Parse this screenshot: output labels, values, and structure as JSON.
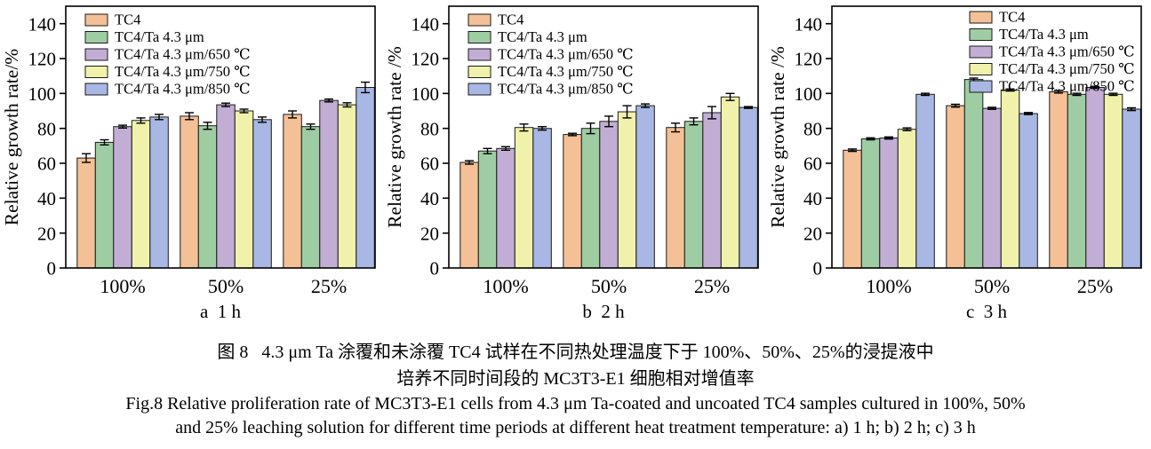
{
  "figure": {
    "caption_zh_line1": "图 8   4.3 μm Ta 涂覆和未涂覆 TC4 试样在不同热处理温度下于 100%、50%、25%的浸提液中",
    "caption_zh_line2": "培养不同时间段的 MC3T3-E1 细胞相对增值率",
    "caption_en_line1": "Fig.8 Relative proliferation rate of MC3T3-E1 cells from 4.3 μm Ta-coated and uncoated TC4 samples cultured in 100%, 50%",
    "caption_en_line2": "and 25% leaching solution for different time periods at different heat treatment temperature: a) 1 h; b) 2 h; c) 3 h"
  },
  "colors": {
    "axis": "#000000",
    "bar_stroke": "#1a1a1a",
    "error_bar": "#000000",
    "series": [
      "#F4C096",
      "#9FCDA3",
      "#C2AED5",
      "#F0F2AC",
      "#A8B7E3"
    ]
  },
  "chart_data": [
    {
      "type": "bar",
      "title": "a  1 h",
      "ylabel": "Relative growth rate/%",
      "xlabel": "",
      "categories": [
        "100%",
        "50%",
        "25%"
      ],
      "ylim": [
        0,
        150
      ],
      "yticks": [
        0,
        20,
        40,
        60,
        80,
        100,
        120,
        140
      ],
      "grid": false,
      "legend_position": "top-left",
      "series": [
        {
          "name": "TC4",
          "color": "#F4C096",
          "values": [
            63,
            87,
            88
          ],
          "errors": [
            2.5,
            2,
            2
          ]
        },
        {
          "name": "TC4/Ta 4.3 μm",
          "color": "#9FCDA3",
          "values": [
            72,
            81.5,
            81
          ],
          "errors": [
            1.5,
            2,
            1.5
          ]
        },
        {
          "name": "TC4/Ta 4.3 μm/650 ℃",
          "color": "#C2AED5",
          "values": [
            81,
            93.5,
            96
          ],
          "errors": [
            0.8,
            1,
            0.8
          ]
        },
        {
          "name": "TC4/Ta 4.3 μm/750 ℃",
          "color": "#F0F2AC",
          "values": [
            84.5,
            90,
            93.5
          ],
          "errors": [
            1.5,
            1,
            1.2
          ]
        },
        {
          "name": "TC4/Ta 4.3 μm/850 ℃",
          "color": "#A8B7E3",
          "values": [
            86.5,
            85,
            103.5
          ],
          "errors": [
            1.5,
            1.5,
            3
          ]
        }
      ]
    },
    {
      "type": "bar",
      "title": "b  2 h",
      "ylabel": "Relative growth rate /%",
      "xlabel": "",
      "categories": [
        "100%",
        "50%",
        "25%"
      ],
      "ylim": [
        0,
        150
      ],
      "yticks": [
        0,
        20,
        40,
        60,
        80,
        100,
        120,
        140
      ],
      "grid": false,
      "legend_position": "top-left",
      "series": [
        {
          "name": "TC4",
          "color": "#F4C096",
          "values": [
            60.5,
            76.5,
            80.5
          ],
          "errors": [
            1,
            0.7,
            2.5
          ]
        },
        {
          "name": "TC4/Ta 4.3 μm",
          "color": "#9FCDA3",
          "values": [
            67,
            80,
            84
          ],
          "errors": [
            1.5,
            3,
            2
          ]
        },
        {
          "name": "TC4/Ta 4.3 μm/650 ℃",
          "color": "#C2AED5",
          "values": [
            68.5,
            84,
            89
          ],
          "errors": [
            1,
            3,
            3.5
          ]
        },
        {
          "name": "TC4/Ta 4.3 μm/750 ℃",
          "color": "#F0F2AC",
          "values": [
            80.5,
            89.5,
            98
          ],
          "errors": [
            2,
            3.5,
            2
          ]
        },
        {
          "name": "TC4/Ta 4.3 μm/850 ℃",
          "color": "#A8B7E3",
          "values": [
            80,
            93,
            92
          ],
          "errors": [
            1,
            1,
            0.5
          ]
        }
      ]
    },
    {
      "type": "bar",
      "title": "c  3 h",
      "ylabel": "Relative growth rate /%",
      "xlabel": "",
      "categories": [
        "100%",
        "50%",
        "25%"
      ],
      "ylim": [
        0,
        150
      ],
      "yticks": [
        0,
        20,
        40,
        60,
        80,
        100,
        120,
        140
      ],
      "grid": false,
      "legend_position": "top-right",
      "series": [
        {
          "name": "TC4",
          "color": "#F4C096",
          "values": [
            67.5,
            93,
            101
          ],
          "errors": [
            0.7,
            0.8,
            0.8
          ]
        },
        {
          "name": "TC4/Ta 4.3 μm",
          "color": "#9FCDA3",
          "values": [
            74,
            108,
            99.5
          ],
          "errors": [
            0.6,
            0.8,
            0.6
          ]
        },
        {
          "name": "TC4/Ta 4.3 μm/650 ℃",
          "color": "#C2AED5",
          "values": [
            74.5,
            91.5,
            103.5
          ],
          "errors": [
            0.6,
            0.6,
            0.6
          ]
        },
        {
          "name": "TC4/Ta 4.3 μm/750 ℃",
          "color": "#F0F2AC",
          "values": [
            79.5,
            102,
            99.5
          ],
          "errors": [
            0.8,
            0.6,
            0.6
          ]
        },
        {
          "name": "TC4/Ta 4.3 μm/850 ℃",
          "color": "#A8B7E3",
          "values": [
            99.5,
            88.5,
            91
          ],
          "errors": [
            0.6,
            0.6,
            0.8
          ]
        }
      ]
    }
  ]
}
